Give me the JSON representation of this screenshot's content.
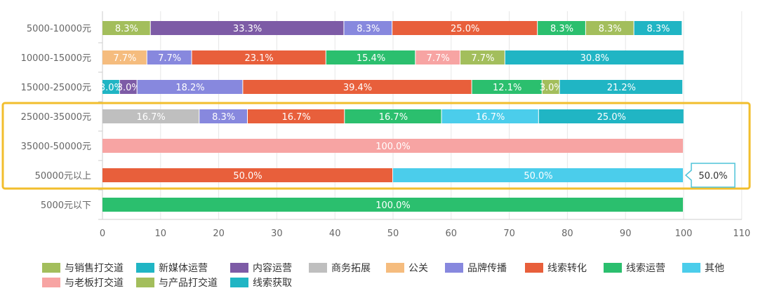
{
  "colors": {
    "highlight_box": "#F2BE2C",
    "axis": "#CCCCCC",
    "grid": "#E6E6E6",
    "tick_text": "#666666",
    "bar_label": "#FFFFFF",
    "tooltip_border": "#4FC3D9"
  },
  "chart_data": {
    "type": "bar",
    "orientation": "horizontal",
    "stacked": true,
    "categories": [
      "5000-10000元",
      "10000-15000元",
      "15000-25000元",
      "25000-35000元",
      "35000-50000元",
      "50000元以上",
      "5000元以下"
    ],
    "xlim": [
      0,
      110
    ],
    "x_ticks": [
      "0",
      "10",
      "20",
      "30",
      "40",
      "50",
      "60",
      "70",
      "80",
      "90",
      "100",
      "110"
    ],
    "grid": true,
    "legend_position": "bottom",
    "highlighted_categories": [
      "25000-35000元",
      "35000-50000元",
      "50000元以上"
    ],
    "tooltip": {
      "category": "50000元以上",
      "text": "50.0%"
    },
    "legend": [
      {
        "name": "与销售打交道",
        "color": "#A3BE5C"
      },
      {
        "name": "新媒体运营",
        "color": "#20B5C4"
      },
      {
        "name": "内容运营",
        "color": "#7D5BA6"
      },
      {
        "name": "商务拓展",
        "color": "#BFBFBF"
      },
      {
        "name": "公关",
        "color": "#F5BC7E"
      },
      {
        "name": "品牌传播",
        "color": "#8788DE"
      },
      {
        "name": "线索转化",
        "color": "#E85F3B"
      },
      {
        "name": "线索运营",
        "color": "#2BBF6E"
      },
      {
        "name": "其他",
        "color": "#4BCDEB"
      },
      {
        "name": "与老板打交道",
        "color": "#F7A4A3"
      },
      {
        "name": "与产品打交道",
        "color": "#A3BE5C"
      },
      {
        "name": "线索获取",
        "color": "#20B5C4"
      }
    ],
    "rows": [
      {
        "category": "5000-10000元",
        "segments": [
          {
            "series": "与销售打交道",
            "value": 8.3,
            "label": "8.3%"
          },
          {
            "series": "内容运营",
            "value": 33.3,
            "label": "33.3%"
          },
          {
            "series": "品牌传播",
            "value": 8.3,
            "label": "8.3%"
          },
          {
            "series": "线索转化",
            "value": 25.0,
            "label": "25.0%"
          },
          {
            "series": "线索运营",
            "value": 8.3,
            "label": "8.3%"
          },
          {
            "series": "与产品打交道",
            "value": 8.3,
            "label": "8.3%"
          },
          {
            "series": "线索获取",
            "value": 8.3,
            "label": "8.3%"
          }
        ]
      },
      {
        "category": "10000-15000元",
        "segments": [
          {
            "series": "公关",
            "value": 7.7,
            "label": "7.7%"
          },
          {
            "series": "品牌传播",
            "value": 7.7,
            "label": "7.7%"
          },
          {
            "series": "线索转化",
            "value": 23.1,
            "label": "23.1%"
          },
          {
            "series": "线索运营",
            "value": 15.4,
            "label": "15.4%"
          },
          {
            "series": "与老板打交道",
            "value": 7.7,
            "label": "7.7%"
          },
          {
            "series": "与产品打交道",
            "value": 7.7,
            "label": "7.7%"
          },
          {
            "series": "线索获取",
            "value": 30.8,
            "label": "30.8%"
          }
        ]
      },
      {
        "category": "15000-25000元",
        "segments": [
          {
            "series": "新媒体运营",
            "value": 3.0,
            "label": "3.0%"
          },
          {
            "series": "内容运营",
            "value": 3.0,
            "label": "3.0%"
          },
          {
            "series": "品牌传播",
            "value": 18.2,
            "label": "18.2%"
          },
          {
            "series": "线索转化",
            "value": 39.4,
            "label": "39.4%"
          },
          {
            "series": "线索运营",
            "value": 12.1,
            "label": "12.1%"
          },
          {
            "series": "与产品打交道",
            "value": 3.0,
            "label": "3.0%"
          },
          {
            "series": "线索获取",
            "value": 21.2,
            "label": "21.2%"
          }
        ]
      },
      {
        "category": "25000-35000元",
        "segments": [
          {
            "series": "商务拓展",
            "value": 16.7,
            "label": "16.7%"
          },
          {
            "series": "品牌传播",
            "value": 8.3,
            "label": "8.3%"
          },
          {
            "series": "线索转化",
            "value": 16.7,
            "label": "16.7%"
          },
          {
            "series": "线索运营",
            "value": 16.7,
            "label": "16.7%"
          },
          {
            "series": "其他",
            "value": 16.7,
            "label": "16.7%"
          },
          {
            "series": "线索获取",
            "value": 25.0,
            "label": "25.0%"
          }
        ]
      },
      {
        "category": "35000-50000元",
        "segments": [
          {
            "series": "与老板打交道",
            "value": 100.0,
            "label": "100.0%"
          }
        ]
      },
      {
        "category": "50000元以上",
        "segments": [
          {
            "series": "线索转化",
            "value": 50.0,
            "label": "50.0%"
          },
          {
            "series": "其他",
            "value": 50.0,
            "label": "50.0%"
          }
        ]
      },
      {
        "category": "5000元以下",
        "segments": [
          {
            "series": "线索运营",
            "value": 100.0,
            "label": "100.0%"
          }
        ]
      }
    ]
  }
}
